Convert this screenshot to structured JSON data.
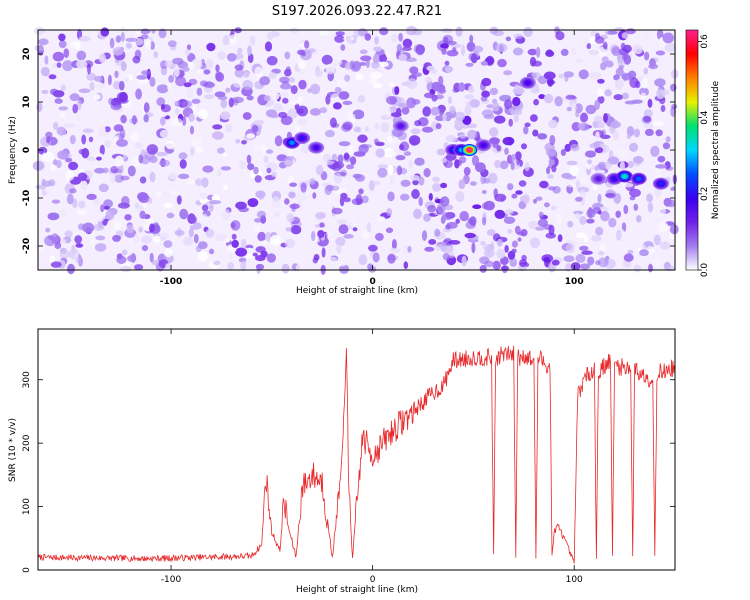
{
  "chart_data": [
    {
      "type": "heatmap",
      "title": "S197.2026.093.22.47.R21",
      "xlabel": "Height of straight line (km)",
      "ylabel": "Frequency (Hz)",
      "xlim": [
        -166,
        150
      ],
      "ylim": [
        -25,
        25
      ],
      "x_ticks": [
        -100,
        0,
        100
      ],
      "x_tick_labels": [
        "-100",
        "0",
        "100"
      ],
      "y_ticks": [
        -20,
        -10,
        0,
        10,
        20
      ],
      "y_tick_labels": [
        "-20",
        "-10",
        "0",
        "10",
        "20"
      ],
      "colorbar": {
        "label": "Normalized spectral amplitude",
        "range": [
          0.0,
          0.63
        ],
        "ticks": [
          0.0,
          0.2,
          0.4,
          0.6
        ],
        "tick_labels": [
          "0.0",
          "0.2",
          "0.4",
          "0.6"
        ],
        "colormap": [
          "#ffffff",
          "#a27cf0",
          "#7020e8",
          "#3a00f0",
          "#0050ff",
          "#00d8ff",
          "#00e070",
          "#e8f000",
          "#ff8000",
          "#ff0000",
          "#ff2090"
        ]
      },
      "hotspots": [
        {
          "x": -40,
          "y": 1.5,
          "v": 0.28
        },
        {
          "x": -35,
          "y": 2.5,
          "v": 0.2
        },
        {
          "x": -28,
          "y": 0.5,
          "v": 0.18
        },
        {
          "x": 14,
          "y": 5,
          "v": 0.15
        },
        {
          "x": 40,
          "y": 0,
          "v": 0.22
        },
        {
          "x": 44,
          "y": 0,
          "v": 0.3
        },
        {
          "x": 48,
          "y": 0,
          "v": 0.63
        },
        {
          "x": 55,
          "y": 1,
          "v": 0.18
        },
        {
          "x": 77,
          "y": 14,
          "v": 0.18
        },
        {
          "x": 112,
          "y": -6,
          "v": 0.14
        },
        {
          "x": 120,
          "y": -6,
          "v": 0.2
        },
        {
          "x": 125,
          "y": -5.5,
          "v": 0.35
        },
        {
          "x": 132,
          "y": -6,
          "v": 0.26
        },
        {
          "x": 143,
          "y": -7,
          "v": 0.22
        }
      ]
    },
    {
      "type": "line",
      "xlabel": "Height of straight line (km)",
      "ylabel": "SNR (10 * v/v)",
      "xlim": [
        -166,
        150
      ],
      "ylim": [
        0,
        380
      ],
      "x_ticks": [
        -100,
        0,
        100
      ],
      "x_tick_labels": [
        "-100",
        "0",
        "100"
      ],
      "y_ticks": [
        0,
        100,
        200,
        300
      ],
      "y_tick_labels": [
        "0",
        "100",
        "200",
        "300"
      ],
      "series": [
        {
          "name": "SNR",
          "color": "#e8282a",
          "x": [
            -166,
            -110,
            -60,
            -55,
            -53,
            -50,
            -46,
            -44,
            -42,
            -38,
            -35,
            -30,
            -25,
            -20,
            -15,
            -13,
            -12,
            -10,
            -5,
            0,
            10,
            20,
            30,
            35,
            40,
            50,
            59,
            60,
            61,
            62,
            64,
            70,
            71,
            72,
            73,
            74,
            80,
            81,
            82,
            83,
            84,
            88,
            89,
            90,
            92,
            95,
            100,
            101,
            102,
            105,
            110,
            111,
            112,
            114,
            118,
            119,
            120,
            121,
            122,
            128,
            129,
            130,
            131,
            132,
            139,
            140,
            141,
            142,
            143,
            150
          ],
          "y": [
            20,
            18,
            22,
            40,
            150,
            60,
            30,
            110,
            70,
            20,
            130,
            150,
            140,
            20,
            170,
            360,
            140,
            20,
            210,
            180,
            220,
            250,
            280,
            290,
            330,
            335,
            335,
            20,
            330,
            335,
            340,
            340,
            20,
            340,
            335,
            340,
            330,
            20,
            330,
            335,
            330,
            320,
            20,
            60,
            70,
            50,
            10,
            180,
            280,
            300,
            320,
            20,
            310,
            320,
            330,
            20,
            320,
            330,
            320,
            320,
            20,
            315,
            320,
            310,
            300,
            20,
            300,
            320,
            310,
            320
          ]
        }
      ]
    }
  ]
}
